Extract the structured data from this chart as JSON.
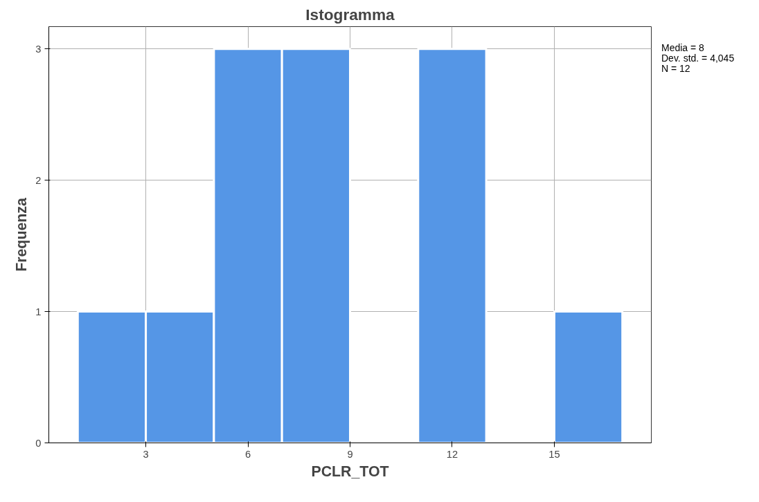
{
  "chart_data": {
    "type": "histogram",
    "title": "Istogramma",
    "xlabel": "PCLR_TOT",
    "ylabel": "Frequenza",
    "bins": [
      1,
      3,
      5,
      7,
      9,
      11,
      13,
      15,
      17
    ],
    "values": [
      1,
      1,
      3,
      3,
      0,
      3,
      0,
      1
    ],
    "color": "#5596e6",
    "xlim": [
      0.15,
      17.85
    ],
    "ylim": [
      0,
      3.17
    ],
    "xticks": [
      3,
      6,
      9,
      12,
      15
    ],
    "yticks": [
      0,
      1,
      2,
      3
    ],
    "grid": true,
    "annotations": [
      "Media = 8",
      "Dev. std. = 4,045",
      "N = 12"
    ]
  }
}
